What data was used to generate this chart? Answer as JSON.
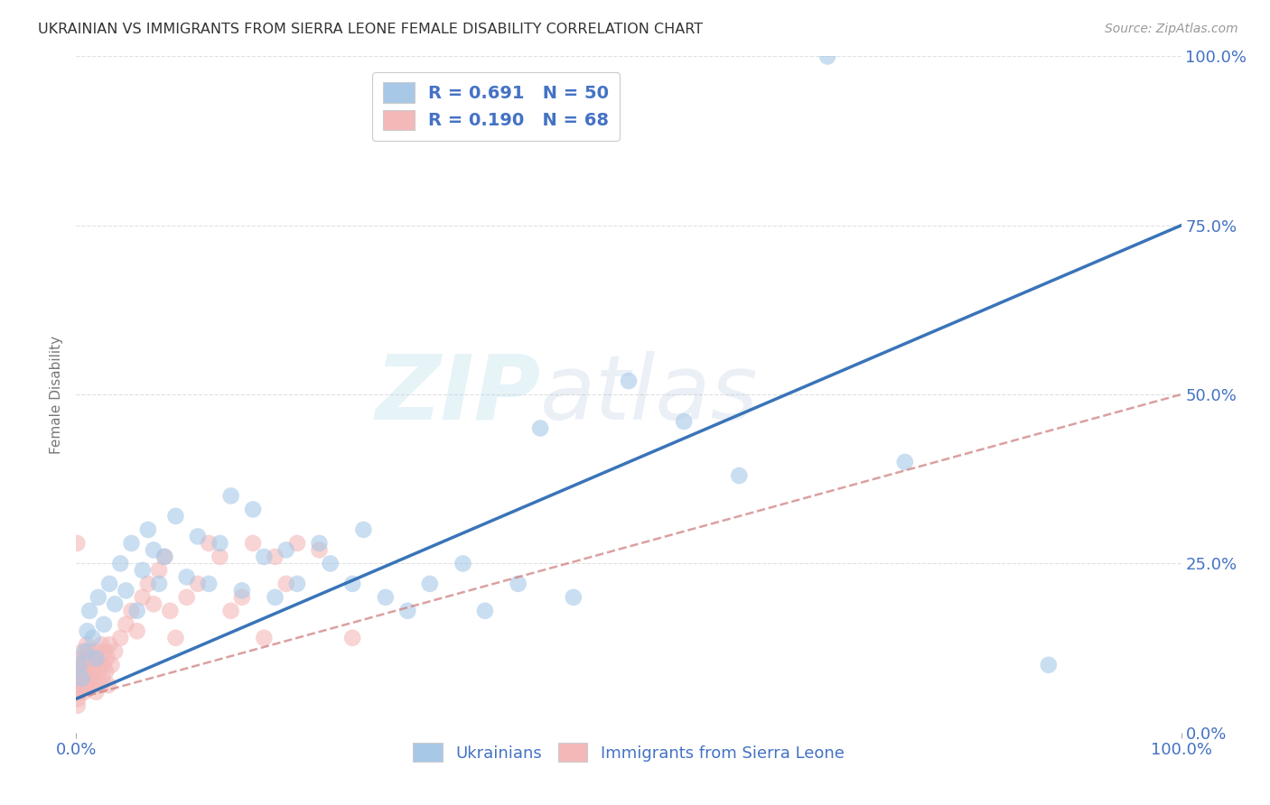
{
  "title": "UKRAINIAN VS IMMIGRANTS FROM SIERRA LEONE FEMALE DISABILITY CORRELATION CHART",
  "source": "Source: ZipAtlas.com",
  "ylabel": "Female Disability",
  "ytick_labels": [
    "0.0%",
    "25.0%",
    "50.0%",
    "75.0%",
    "100.0%"
  ],
  "ytick_positions": [
    0,
    25,
    50,
    75,
    100
  ],
  "xtick_labels": [
    "0.0%",
    "100.0%"
  ],
  "xtick_positions": [
    0,
    100
  ],
  "legend_entries": [
    {
      "label": "R = 0.691   N = 50",
      "color": "#a8c8e8"
    },
    {
      "label": "R = 0.190   N = 68",
      "color": "#f4b8b8"
    }
  ],
  "ukrainians": {
    "color": "#a8c8e8",
    "line_color": "#2e6db4",
    "line_x0": 0,
    "line_y0": 5,
    "line_x1": 100,
    "line_y1": 75
  },
  "sierra_leone": {
    "color": "#f4b8b8",
    "line_color": "#d08080",
    "line_x0": 0,
    "line_y0": 5,
    "line_x1": 100,
    "line_y1": 50
  },
  "uk_scatter_x": [
    0.3,
    0.5,
    0.8,
    1.0,
    1.2,
    1.5,
    1.8,
    2.0,
    2.5,
    3.0,
    3.5,
    4.0,
    4.5,
    5.0,
    5.5,
    6.0,
    6.5,
    7.0,
    7.5,
    8.0,
    9.0,
    10.0,
    11.0,
    12.0,
    13.0,
    14.0,
    15.0,
    16.0,
    17.0,
    18.0,
    19.0,
    20.0,
    22.0,
    23.0,
    25.0,
    26.0,
    28.0,
    30.0,
    32.0,
    35.0,
    37.0,
    40.0,
    42.0,
    45.0,
    50.0,
    55.0,
    60.0,
    68.0,
    75.0,
    88.0
  ],
  "uk_scatter_y": [
    10.0,
    8.0,
    12.0,
    15.0,
    18.0,
    14.0,
    11.0,
    20.0,
    16.0,
    22.0,
    19.0,
    25.0,
    21.0,
    28.0,
    18.0,
    24.0,
    30.0,
    27.0,
    22.0,
    26.0,
    32.0,
    23.0,
    29.0,
    22.0,
    28.0,
    35.0,
    21.0,
    33.0,
    26.0,
    20.0,
    27.0,
    22.0,
    28.0,
    25.0,
    22.0,
    30.0,
    20.0,
    18.0,
    22.0,
    25.0,
    18.0,
    22.0,
    45.0,
    20.0,
    52.0,
    46.0,
    38.0,
    100.0,
    40.0,
    10.0
  ],
  "sl_scatter_x": [
    0.05,
    0.1,
    0.15,
    0.2,
    0.25,
    0.3,
    0.35,
    0.4,
    0.45,
    0.5,
    0.55,
    0.6,
    0.65,
    0.7,
    0.75,
    0.8,
    0.85,
    0.9,
    0.95,
    1.0,
    1.1,
    1.2,
    1.3,
    1.4,
    1.5,
    1.6,
    1.7,
    1.8,
    1.9,
    2.0,
    2.1,
    2.2,
    2.3,
    2.4,
    2.5,
    2.6,
    2.7,
    2.8,
    2.9,
    3.0,
    3.2,
    3.5,
    4.0,
    4.5,
    5.0,
    5.5,
    6.0,
    6.5,
    7.0,
    7.5,
    8.0,
    8.5,
    9.0,
    10.0,
    11.0,
    12.0,
    13.0,
    14.0,
    15.0,
    16.0,
    17.0,
    18.0,
    19.0,
    20.0,
    22.0,
    25.0,
    0.08,
    0.12
  ],
  "sl_scatter_y": [
    6.0,
    8.0,
    5.0,
    9.0,
    7.0,
    10.0,
    6.0,
    11.0,
    8.0,
    9.0,
    7.0,
    12.0,
    8.0,
    10.0,
    6.0,
    11.0,
    9.0,
    7.0,
    13.0,
    8.0,
    10.0,
    12.0,
    7.0,
    9.0,
    11.0,
    8.0,
    10.0,
    6.0,
    12.0,
    9.0,
    11.0,
    7.0,
    13.0,
    8.0,
    10.0,
    12.0,
    9.0,
    11.0,
    7.0,
    13.0,
    10.0,
    12.0,
    14.0,
    16.0,
    18.0,
    15.0,
    20.0,
    22.0,
    19.0,
    24.0,
    26.0,
    18.0,
    14.0,
    20.0,
    22.0,
    28.0,
    26.0,
    18.0,
    20.0,
    28.0,
    14.0,
    26.0,
    22.0,
    28.0,
    27.0,
    14.0,
    28.0,
    4.0
  ],
  "xlim": [
    0,
    100
  ],
  "ylim": [
    0,
    100
  ],
  "background_color": "#ffffff",
  "grid_color": "#dddddd",
  "watermark_zip": "ZIP",
  "watermark_atlas": "atlas"
}
